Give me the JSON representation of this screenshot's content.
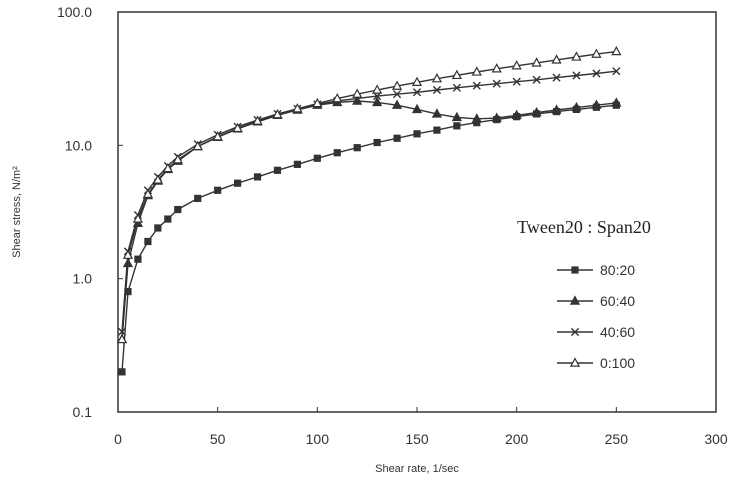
{
  "chart_data": {
    "type": "line",
    "xlabel": "Shear rate, 1/sec",
    "ylabel": "Shear stress, N/m²",
    "x_ticks": [
      "0",
      "50",
      "100",
      "150",
      "200",
      "250",
      "300"
    ],
    "y_ticks": [
      "0.1",
      "1.0",
      "10.0",
      "100.0"
    ],
    "xlim": [
      0,
      300
    ],
    "ylim": [
      0.1,
      100
    ],
    "y_scale": "log",
    "legend_title": "Tween20 : Span20",
    "legend_position": "lower-right",
    "grid": false,
    "series": [
      {
        "name": "80:20",
        "marker": "square",
        "color": "#333333",
        "x": [
          2,
          5,
          10,
          15,
          20,
          25,
          30,
          40,
          50,
          60,
          70,
          80,
          90,
          100,
          110,
          120,
          130,
          140,
          150,
          160,
          170,
          180,
          190,
          200,
          210,
          220,
          230,
          240,
          250
        ],
        "y": [
          0.2,
          0.8,
          1.4,
          1.9,
          2.4,
          2.8,
          3.3,
          4.0,
          4.6,
          5.2,
          5.8,
          6.5,
          7.2,
          8.0,
          8.8,
          9.6,
          10.5,
          11.3,
          12.2,
          13.0,
          14.0,
          14.8,
          15.6,
          16.4,
          17.2,
          17.9,
          18.6,
          19.3,
          20.0
        ]
      },
      {
        "name": "60:40",
        "marker": "triangle",
        "color": "#333333",
        "x": [
          2,
          5,
          10,
          15,
          20,
          25,
          30,
          40,
          50,
          60,
          70,
          80,
          90,
          100,
          110,
          120,
          130,
          140,
          150,
          160,
          170,
          180,
          190,
          200,
          210,
          220,
          230,
          240,
          250
        ],
        "y": [
          0.35,
          1.3,
          2.6,
          4.2,
          5.4,
          6.6,
          7.6,
          9.8,
          11.5,
          13.3,
          15.0,
          16.8,
          18.4,
          20.0,
          21.0,
          21.5,
          21.0,
          20.0,
          18.6,
          17.2,
          16.2,
          15.8,
          16.0,
          16.8,
          17.6,
          18.4,
          19.2,
          20.0,
          20.8
        ]
      },
      {
        "name": "40:60",
        "marker": "cross",
        "color": "#333333",
        "x": [
          2,
          5,
          10,
          15,
          20,
          25,
          30,
          40,
          50,
          60,
          70,
          80,
          90,
          100,
          110,
          120,
          130,
          140,
          150,
          160,
          170,
          180,
          190,
          200,
          210,
          220,
          230,
          240,
          250
        ],
        "y": [
          0.4,
          1.6,
          3.0,
          4.6,
          5.8,
          7.0,
          8.2,
          10.2,
          12.0,
          13.8,
          15.5,
          17.2,
          18.8,
          20.3,
          21.5,
          22.5,
          23.4,
          24.2,
          25.0,
          26.0,
          27.0,
          28.0,
          29.0,
          30.0,
          31.0,
          32.2,
          33.4,
          34.6,
          36.0
        ]
      },
      {
        "name": "0:100",
        "marker": "open-triangle",
        "color": "#333333",
        "x": [
          2,
          5,
          10,
          15,
          20,
          25,
          30,
          40,
          50,
          60,
          70,
          80,
          90,
          100,
          110,
          120,
          130,
          140,
          150,
          160,
          170,
          180,
          190,
          200,
          210,
          220,
          230,
          240,
          250
        ],
        "y": [
          0.35,
          1.5,
          2.8,
          4.3,
          5.5,
          6.7,
          7.8,
          9.8,
          11.6,
          13.4,
          15.2,
          17.0,
          18.8,
          20.6,
          22.4,
          24.2,
          26.0,
          27.8,
          29.7,
          31.6,
          33.5,
          35.5,
          37.5,
          39.5,
          41.5,
          43.7,
          46.0,
          48.3,
          50.5
        ]
      }
    ]
  }
}
